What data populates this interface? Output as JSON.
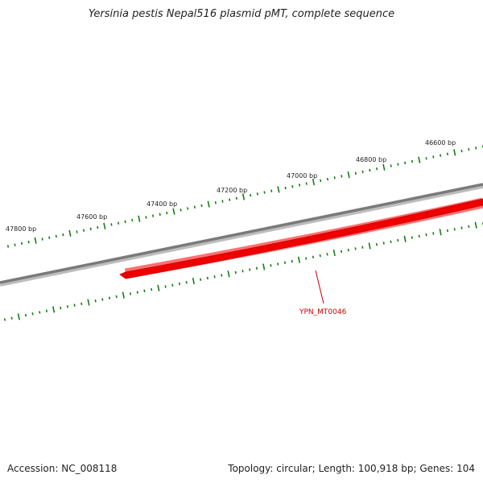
{
  "title": "Yersinia pestis Nepal516 plasmid pMT, complete sequence",
  "footer": {
    "accession": "Accession: NC_008118",
    "summary": "Topology: circular; Length: 100,918 bp; Genes: 104"
  },
  "ticks": {
    "labels": [
      "46600 bp",
      "46800 bp",
      "47000 bp",
      "47200 bp",
      "47400 bp",
      "47600 bp",
      "47800 bp"
    ]
  },
  "genes": [
    {
      "name": "YPN_MT0046",
      "color": "#e00000"
    }
  ],
  "colors": {
    "backbone": "#7a7a7a",
    "tick": "#1a7a1a",
    "gene_fill": "#ee0000",
    "gene_shadow": "#ff7070",
    "gene_label": "#cc0000"
  }
}
